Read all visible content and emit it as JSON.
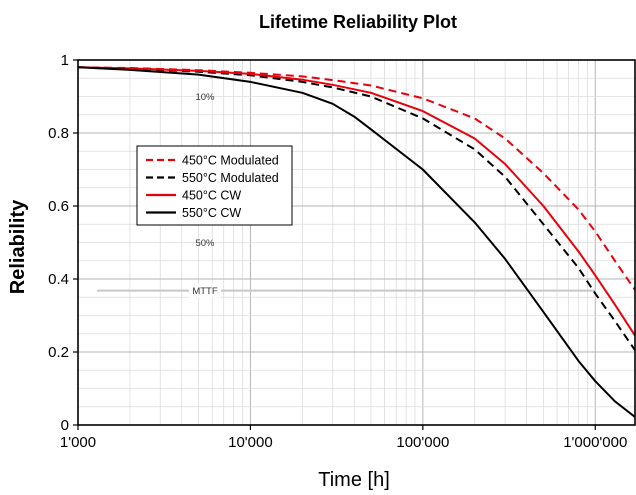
{
  "chart_data": {
    "type": "line",
    "title": "Lifetime Reliability Plot",
    "xlabel": "Time [h]",
    "ylabel": "Reliability",
    "x_scale": "log",
    "xlim": [
      1000,
      1700000
    ],
    "ylim": [
      0,
      1
    ],
    "x_ticks": [
      {
        "value": 1000,
        "label": "1'000"
      },
      {
        "value": 10000,
        "label": "10'000"
      },
      {
        "value": 100000,
        "label": "100'000"
      },
      {
        "value": 1000000,
        "label": "1'000'000"
      }
    ],
    "y_ticks": [
      {
        "value": 0,
        "label": "0"
      },
      {
        "value": 0.2,
        "label": "0.2"
      },
      {
        "value": 0.4,
        "label": "0.4"
      },
      {
        "value": 0.6,
        "label": "0.6"
      },
      {
        "value": 0.8,
        "label": "0.8"
      },
      {
        "value": 1,
        "label": "1"
      }
    ],
    "grid": true,
    "legend_position": "left",
    "reference_lines": [
      {
        "label": "10%",
        "y": 0.9,
        "show_line": false
      },
      {
        "label": "50%",
        "y": 0.5,
        "show_line": false
      },
      {
        "label": "MTTF",
        "y": 0.368,
        "show_line": true,
        "x_range": [
          1000,
          1000000
        ],
        "color": "#c8c8c8"
      }
    ],
    "series": [
      {
        "name": "450°C Modulated",
        "color": "#e8000b",
        "dash": "dashed",
        "x": [
          1000,
          2000,
          5000,
          10000,
          20000,
          30000,
          50000,
          100000,
          200000,
          300000,
          500000,
          800000,
          1000000,
          1300000,
          1700000
        ],
        "y": [
          0.98,
          0.978,
          0.972,
          0.965,
          0.955,
          0.945,
          0.93,
          0.895,
          0.84,
          0.785,
          0.69,
          0.59,
          0.53,
          0.45,
          0.37
        ]
      },
      {
        "name": "550°C Modulated",
        "color": "#000000",
        "dash": "dashed",
        "x": [
          1000,
          2000,
          5000,
          10000,
          20000,
          30000,
          50000,
          100000,
          200000,
          300000,
          500000,
          800000,
          1000000,
          1300000,
          1700000
        ],
        "y": [
          0.98,
          0.976,
          0.968,
          0.958,
          0.94,
          0.925,
          0.9,
          0.84,
          0.755,
          0.68,
          0.55,
          0.43,
          0.36,
          0.285,
          0.205
        ]
      },
      {
        "name": "450°C CW",
        "color": "#e8000b",
        "dash": "solid",
        "x": [
          1000,
          2000,
          5000,
          10000,
          20000,
          30000,
          50000,
          100000,
          200000,
          300000,
          500000,
          800000,
          1000000,
          1300000,
          1700000
        ],
        "y": [
          0.98,
          0.977,
          0.97,
          0.962,
          0.946,
          0.932,
          0.91,
          0.86,
          0.785,
          0.715,
          0.6,
          0.475,
          0.41,
          0.33,
          0.245
        ]
      },
      {
        "name": "550°C CW",
        "color": "#000000",
        "dash": "solid",
        "x": [
          1000,
          2000,
          5000,
          10000,
          20000,
          30000,
          40000,
          50000,
          100000,
          200000,
          300000,
          500000,
          800000,
          1000000,
          1300000,
          1700000
        ],
        "y": [
          0.98,
          0.973,
          0.96,
          0.94,
          0.91,
          0.88,
          0.845,
          0.81,
          0.7,
          0.555,
          0.455,
          0.31,
          0.175,
          0.12,
          0.065,
          0.022
        ]
      }
    ]
  }
}
